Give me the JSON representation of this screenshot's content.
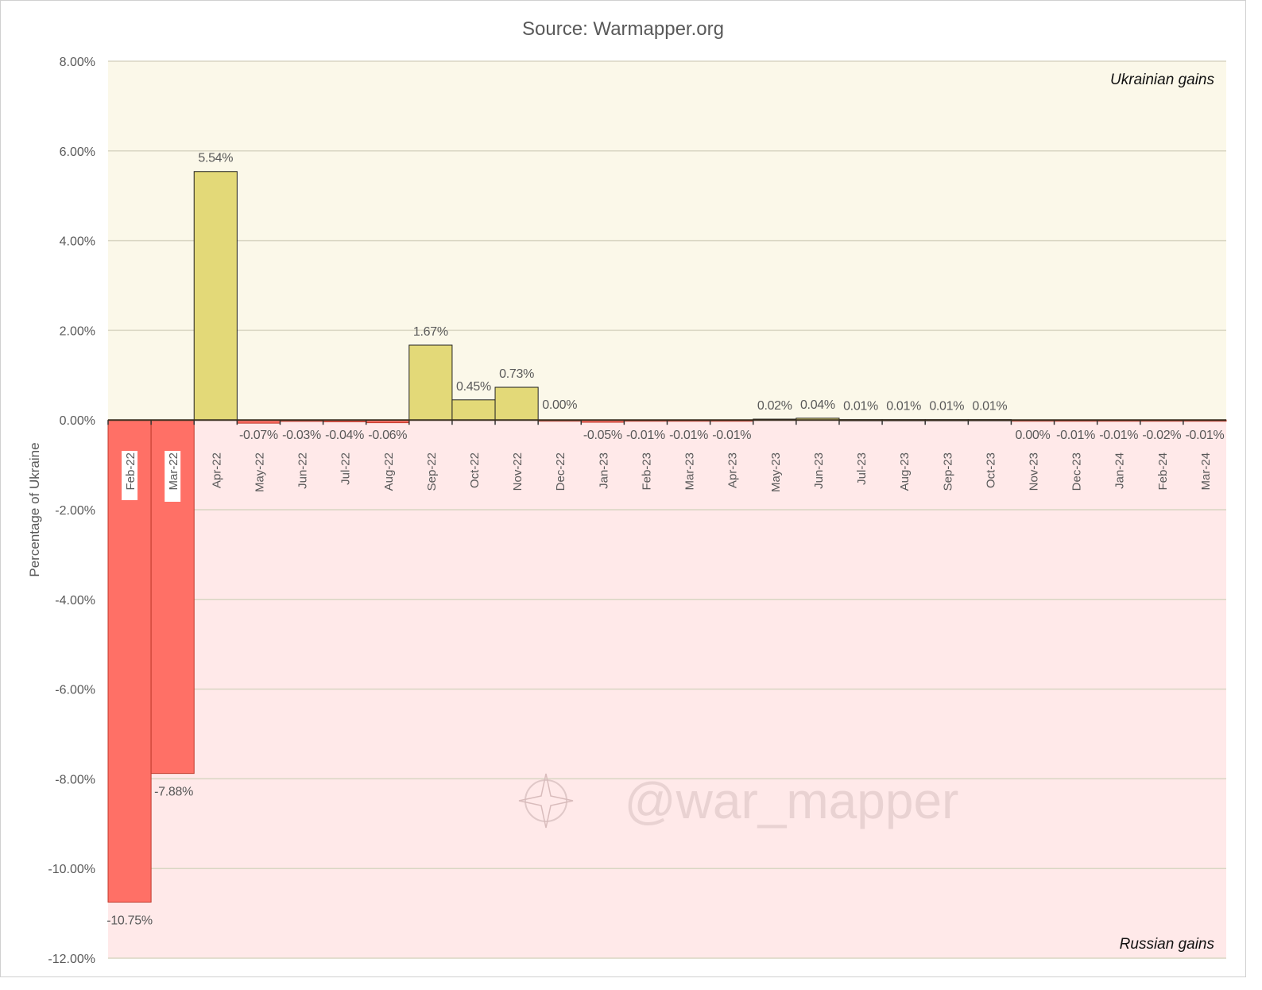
{
  "chart_data": {
    "type": "bar",
    "title": "Source: Warmapper.org",
    "ylabel": "Percentage of Ukraine",
    "xlabel": "",
    "ylim": [
      -12,
      8
    ],
    "yticks": [
      8,
      6,
      4,
      2,
      0,
      -2,
      -4,
      -6,
      -8,
      -10,
      -12
    ],
    "ytick_labels": [
      "8.00%",
      "6.00%",
      "4.00%",
      "2.00%",
      "0.00%",
      "-2.00%",
      "-4.00%",
      "-6.00%",
      "-8.00%",
      "-10.00%",
      "-12.00%"
    ],
    "grid": true,
    "annotations": {
      "upper": "Ukrainian gains",
      "lower": "Russian gains"
    },
    "watermark": "@war_mapper",
    "categories": [
      "Feb-22",
      "Mar-22",
      "Apr-22",
      "May-22",
      "Jun-22",
      "Jul-22",
      "Aug-22",
      "Sep-22",
      "Oct-22",
      "Nov-22",
      "Dec-22",
      "Jan-23",
      "Feb-23",
      "Mar-23",
      "Apr-23",
      "May-23",
      "Jun-23",
      "Jul-23",
      "Aug-23",
      "Sep-23",
      "Oct-23",
      "Nov-23",
      "Dec-23",
      "Jan-24",
      "Feb-24",
      "Mar-24"
    ],
    "values": [
      -10.75,
      -7.88,
      5.54,
      -0.07,
      -0.03,
      -0.04,
      -0.06,
      1.67,
      0.45,
      0.73,
      0.0,
      -0.05,
      -0.01,
      -0.01,
      -0.01,
      0.02,
      0.04,
      0.01,
      0.01,
      0.01,
      0.01,
      0.0,
      -0.01,
      -0.01,
      -0.02,
      -0.01
    ],
    "data_labels": [
      "-10.75%",
      "-7.88%",
      "5.54%",
      "-0.07%",
      "-0.03%",
      "-0.04%",
      "-0.06%",
      "1.67%",
      "0.45%",
      "0.73%",
      "0.00%",
      "-0.05%",
      "-0.01%",
      "-0.01%",
      "-0.01%",
      "0.02%",
      "0.04%",
      "0.01%",
      "0.01%",
      "0.01%",
      "0.01%",
      "0.00%",
      "-0.01%",
      "-0.01%",
      "-0.02%",
      "-0.01%"
    ],
    "colors": {
      "positive": "#e3d978",
      "negative": "#ff7066",
      "upper_bg": "#fbf8e9",
      "lower_bg": "#ffe9e9",
      "grid": "#d9d6c3"
    }
  }
}
